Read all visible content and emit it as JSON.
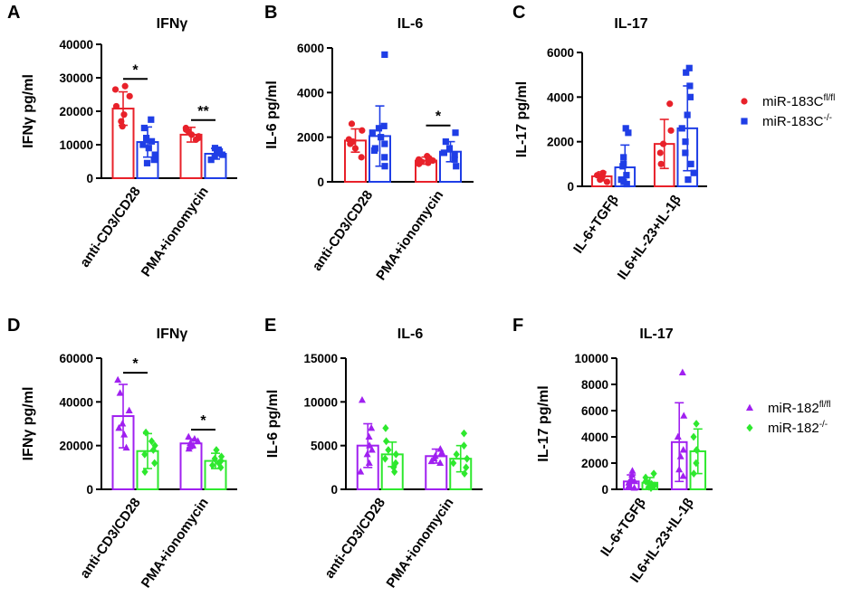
{
  "colors": {
    "red": "#e8212a",
    "blue": "#1f3ee6",
    "purple": "#a020f0",
    "green": "#2ee82e",
    "axis": "#000000"
  },
  "legends": [
    {
      "group": "top",
      "entries": [
        {
          "base": "miR-183C",
          "sup": "fl/fl",
          "color": "#e8212a",
          "marker": "circle"
        },
        {
          "base": "miR-183C",
          "sup": "-/-",
          "color": "#1f3ee6",
          "marker": "square"
        }
      ]
    },
    {
      "group": "bottom",
      "entries": [
        {
          "base": "miR-182",
          "sup": "fl/fl",
          "color": "#a020f0",
          "marker": "triangle"
        },
        {
          "base": "miR-182",
          "sup": "-/-",
          "color": "#2ee82e",
          "marker": "diamond"
        }
      ]
    }
  ],
  "chart_data": [
    {
      "panel": "A",
      "title": "IFNγ",
      "ylabel": "IFNγ pg/ml",
      "type": "bar",
      "ylim": [
        0,
        40000
      ],
      "yticks": [
        0,
        10000,
        20000,
        30000,
        40000
      ],
      "categories": [
        "anti-CD3/CD28",
        "PMA+ionomycin"
      ],
      "series": [
        {
          "name": "miR-183C fl/fl",
          "color": "#e8212a",
          "marker": "circle",
          "means": [
            20800,
            13000
          ],
          "sd": [
            5000,
            2200
          ],
          "points": [
            [
              26500,
              24500,
              21500,
              19000,
              17000,
              15500,
              27500
            ],
            [
              15000,
              14000,
              13000,
              12000,
              11500,
              14500,
              12500
            ]
          ]
        },
        {
          "name": "miR-183C -/-",
          "color": "#1f3ee6",
          "marker": "square",
          "means": [
            10800,
            7300
          ],
          "sd": [
            4500,
            1600
          ],
          "points": [
            [
              17500,
              15000,
              12000,
              10000,
              9000,
              7000,
              5500,
              4500,
              11000
            ],
            [
              9000,
              8000,
              7500,
              7000,
              6500,
              5500,
              8500
            ]
          ]
        }
      ],
      "significance": [
        {
          "category": 0,
          "label": "*"
        },
        {
          "category": 1,
          "label": "**"
        }
      ]
    },
    {
      "panel": "B",
      "title": "IL-6",
      "ylabel": "IL-6 pg/ml",
      "type": "bar",
      "ylim": [
        0,
        6000
      ],
      "yticks": [
        0,
        2000,
        4000,
        6000
      ],
      "categories": [
        "anti-CD3/CD28",
        "PMA+ionomycin"
      ],
      "series": [
        {
          "name": "miR-183C fl/fl",
          "color": "#e8212a",
          "marker": "circle",
          "means": [
            1850,
            950
          ],
          "sd": [
            520,
            160
          ],
          "points": [
            [
              2600,
              2300,
              1900,
              1700,
              1500,
              1100,
              1800
            ],
            [
              1150,
              1050,
              950,
              900,
              850,
              800,
              1000
            ]
          ]
        },
        {
          "name": "miR-183C -/-",
          "color": "#1f3ee6",
          "marker": "square",
          "means": [
            2050,
            1350
          ],
          "sd": [
            1350,
            450
          ],
          "points": [
            [
              5700,
              2500,
              2200,
              2000,
              1700,
              1400,
              1100,
              700,
              1500,
              2400
            ],
            [
              2200,
              1800,
              1500,
              1200,
              1000,
              700,
              1300
            ]
          ]
        }
      ],
      "significance": [
        {
          "category": 1,
          "label": "*"
        }
      ]
    },
    {
      "panel": "C",
      "title": "IL-17",
      "ylabel": "IL-17 pg/ml",
      "type": "bar",
      "ylim": [
        0,
        6000
      ],
      "yticks": [
        0,
        2000,
        4000,
        6000
      ],
      "categories": [
        "IL-6+TGFβ",
        "IL6+IL-23+IL-1β"
      ],
      "series": [
        {
          "name": "miR-183C fl/fl",
          "color": "#e8212a",
          "marker": "circle",
          "means": [
            450,
            1900
          ],
          "sd": [
            200,
            1100
          ],
          "points": [
            [
              600,
              500,
              400,
              300,
              200
            ],
            [
              3700,
              2500,
              1900,
              1000,
              1500
            ]
          ]
        },
        {
          "name": "miR-183C -/-",
          "color": "#1f3ee6",
          "marker": "square",
          "means": [
            850,
            2600
          ],
          "sd": [
            1000,
            1900
          ],
          "points": [
            [
              2600,
              2400,
              1300,
              900,
              500,
              300,
              200,
              100,
              1000
            ],
            [
              5300,
              5100,
              4500,
              4000,
              3200,
              2600,
              2000,
              1500,
              1000,
              600,
              300
            ]
          ]
        }
      ],
      "significance": []
    },
    {
      "panel": "D",
      "title": "IFNγ",
      "ylabel": "IFNγ pg/ml",
      "type": "bar",
      "ylim": [
        0,
        60000
      ],
      "yticks": [
        0,
        20000,
        40000,
        60000
      ],
      "categories": [
        "anti-CD3/CD28",
        "PMA+ionomycin"
      ],
      "series": [
        {
          "name": "miR-182 fl/fl",
          "color": "#a020f0",
          "marker": "triangle",
          "means": [
            33500,
            21000
          ],
          "sd": [
            14500,
            2000
          ],
          "points": [
            [
              50000,
              44000,
              36000,
              30000,
              25000,
              19000,
              28000
            ],
            [
              24000,
              23000,
              22000,
              21000,
              20000,
              19500,
              18500
            ]
          ]
        },
        {
          "name": "miR-182 -/-",
          "color": "#2ee82e",
          "marker": "diamond",
          "means": [
            17500,
            13000
          ],
          "sd": [
            8000,
            3500
          ],
          "points": [
            [
              26000,
              22000,
              18000,
              16000,
              12000,
              8000,
              20000
            ],
            [
              18000,
              15000,
              13000,
              12000,
              11000,
              10000,
              14000
            ]
          ]
        }
      ],
      "significance": [
        {
          "category": 0,
          "label": "*"
        },
        {
          "category": 1,
          "label": "*"
        }
      ]
    },
    {
      "panel": "E",
      "title": "IL-6",
      "ylabel": "IL-6 pg/ml",
      "type": "bar",
      "ylim": [
        0,
        15000
      ],
      "yticks": [
        0,
        5000,
        10000,
        15000
      ],
      "categories": [
        "anti-CD3/CD28",
        "PMA+ionomycin"
      ],
      "series": [
        {
          "name": "miR-182 fl/fl",
          "color": "#a020f0",
          "marker": "triangle",
          "means": [
            5000,
            3800
          ],
          "sd": [
            2500,
            800
          ],
          "points": [
            [
              10200,
              7000,
              6000,
              5000,
              4000,
              3000,
              2000,
              4500
            ],
            [
              4600,
              4200,
              3800,
              3500,
              3200,
              3000,
              4000
            ]
          ]
        },
        {
          "name": "miR-182 -/-",
          "color": "#2ee82e",
          "marker": "diamond",
          "means": [
            4000,
            3500
          ],
          "sd": [
            1400,
            1500
          ],
          "points": [
            [
              7000,
              5500,
              4500,
              4000,
              3500,
              2500,
              2000,
              3000
            ],
            [
              6400,
              5000,
              4000,
              3500,
              3000,
              2500,
              1800
            ]
          ]
        }
      ],
      "significance": []
    },
    {
      "panel": "F",
      "title": "IL-17",
      "ylabel": "IL-17 pg/ml",
      "type": "bar",
      "ylim": [
        0,
        10000
      ],
      "yticks": [
        0,
        2000,
        4000,
        6000,
        8000,
        10000
      ],
      "categories": [
        "IL-6+TGFβ",
        "IL6+IL-23+IL-1β"
      ],
      "series": [
        {
          "name": "miR-182 fl/fl",
          "color": "#a020f0",
          "marker": "triangle",
          "means": [
            600,
            3600
          ],
          "sd": [
            500,
            3000
          ],
          "points": [
            [
              1400,
              1100,
              800,
              500,
              300,
              200,
              100,
              600
            ],
            [
              8900,
              5600,
              4000,
              3000,
              2500,
              1500,
              1000
            ]
          ]
        },
        {
          "name": "miR-182 -/-",
          "color": "#2ee82e",
          "marker": "diamond",
          "means": [
            500,
            2900
          ],
          "sd": [
            400,
            1700
          ],
          "points": [
            [
              1200,
              900,
              600,
              400,
              300,
              200,
              100,
              500
            ],
            [
              5000,
              4000,
              3000,
              2000,
              1200
            ]
          ]
        }
      ],
      "significance": []
    }
  ]
}
